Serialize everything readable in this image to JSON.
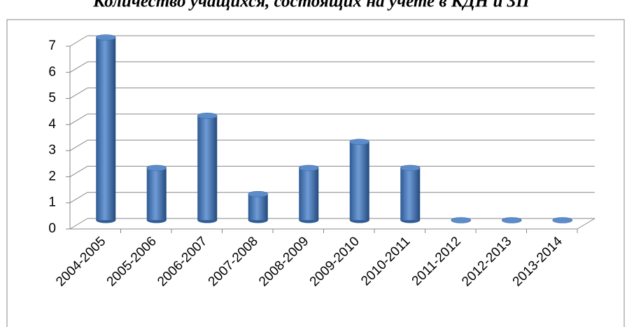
{
  "chart_data": {
    "type": "bar",
    "title": "Количество учащихся, состоящих на учете в КДН и ЗП",
    "categories": [
      "2004-2005",
      "2005-2006",
      "2006-2007",
      "2007-2008",
      "2008-2009",
      "2009-2010",
      "2010-2011",
      "2011-2012",
      "2012-2013",
      "2013-2014"
    ],
    "values": [
      7,
      2,
      4,
      1,
      2,
      3,
      2,
      0,
      0,
      0
    ],
    "color": "#4a7ebb",
    "ylim": [
      0,
      7
    ],
    "yticks": [
      0,
      1,
      2,
      3,
      4,
      5,
      6,
      7
    ],
    "grid": true
  }
}
